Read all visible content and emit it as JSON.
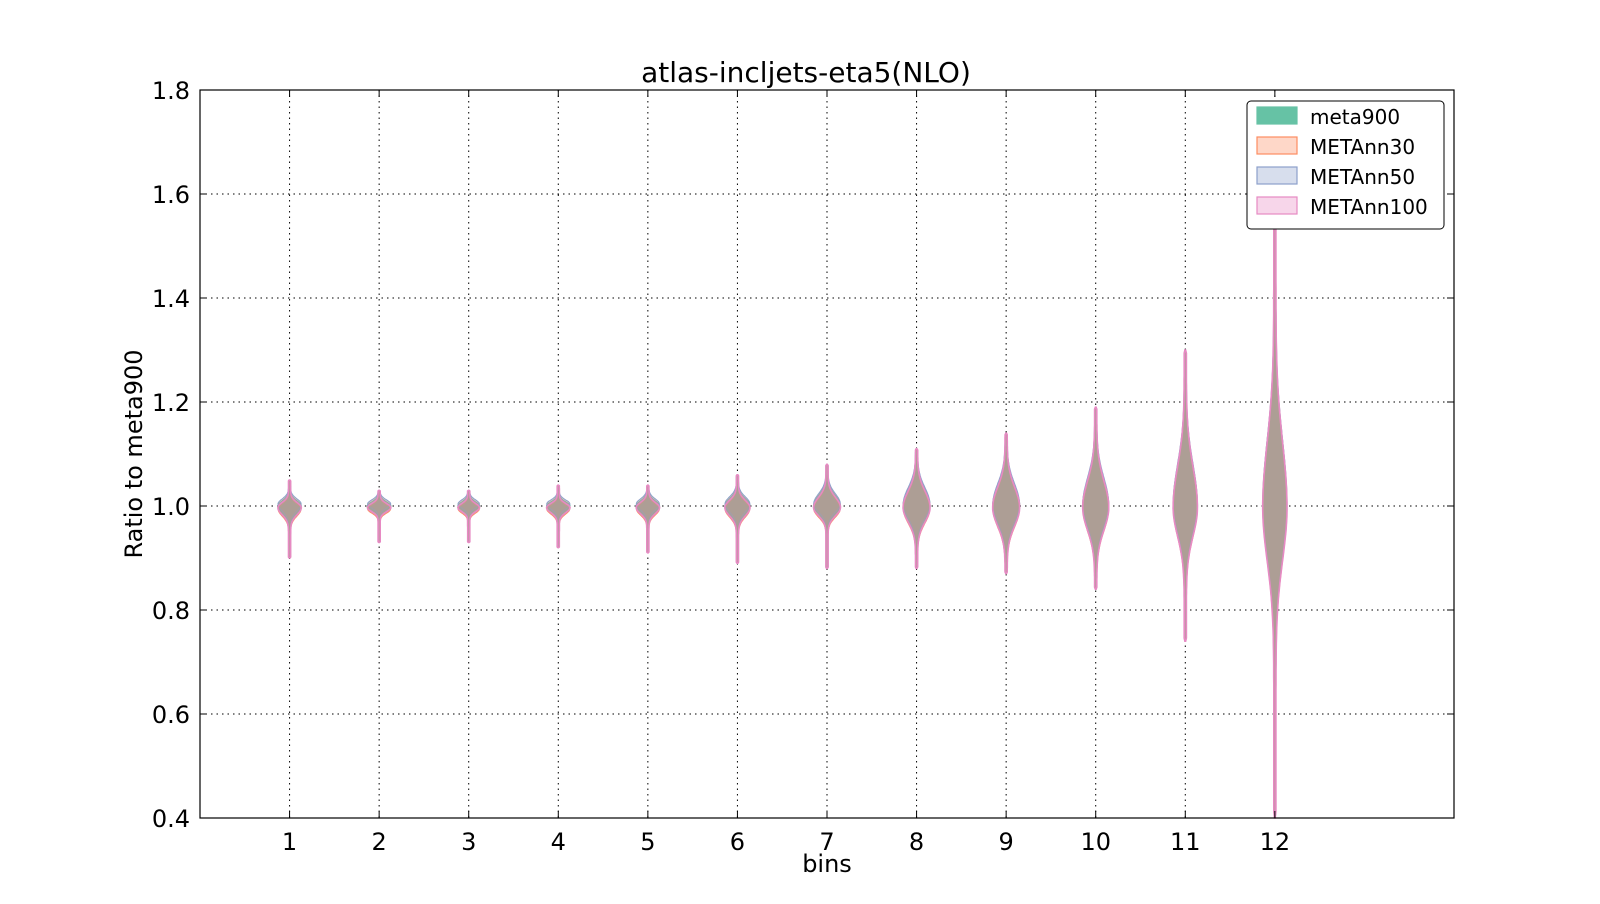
{
  "chart_data": {
    "type": "violin",
    "title": "atlas-incljets-eta5(NLO)",
    "xlabel": "bins",
    "ylabel": "Ratio to meta900",
    "categories": [
      "1",
      "2",
      "3",
      "4",
      "5",
      "6",
      "7",
      "8",
      "9",
      "10",
      "11",
      "12"
    ],
    "xlim": [
      0,
      14
    ],
    "ylim": [
      0.4,
      1.8
    ],
    "yticks": [
      "0.4",
      "0.6",
      "0.8",
      "1.0",
      "1.2",
      "1.4",
      "1.6",
      "1.8"
    ],
    "grid": true,
    "legend_position": "top-right",
    "series": [
      {
        "name": "meta900",
        "color": "#66c2a5"
      },
      {
        "name": "METAnn30",
        "color": "#fc8d62"
      },
      {
        "name": "METAnn50",
        "color": "#8da0cb"
      },
      {
        "name": "METAnn100",
        "color": "#e78ac3"
      }
    ],
    "violins": [
      {
        "bin": 1,
        "y_min": 0.9,
        "y_max": 1.05,
        "upper_lobe_top": 1.025,
        "lower_lobe_bottom": 0.965,
        "max_width": 0.24
      },
      {
        "bin": 2,
        "y_min": 0.93,
        "y_max": 1.03,
        "upper_lobe_top": 1.02,
        "lower_lobe_bottom": 0.98,
        "max_width": 0.24
      },
      {
        "bin": 3,
        "y_min": 0.93,
        "y_max": 1.03,
        "upper_lobe_top": 1.02,
        "lower_lobe_bottom": 0.98,
        "max_width": 0.22
      },
      {
        "bin": 4,
        "y_min": 0.92,
        "y_max": 1.04,
        "upper_lobe_top": 1.02,
        "lower_lobe_bottom": 0.975,
        "max_width": 0.24
      },
      {
        "bin": 5,
        "y_min": 0.91,
        "y_max": 1.04,
        "upper_lobe_top": 1.025,
        "lower_lobe_bottom": 0.97,
        "max_width": 0.24
      },
      {
        "bin": 6,
        "y_min": 0.89,
        "y_max": 1.06,
        "upper_lobe_top": 1.035,
        "lower_lobe_bottom": 0.96,
        "max_width": 0.26
      },
      {
        "bin": 7,
        "y_min": 0.88,
        "y_max": 1.08,
        "upper_lobe_top": 1.05,
        "lower_lobe_bottom": 0.96,
        "max_width": 0.28
      },
      {
        "bin": 8,
        "y_min": 0.88,
        "y_max": 1.11,
        "upper_lobe_top": 1.08,
        "lower_lobe_bottom": 0.93,
        "max_width": 0.28
      },
      {
        "bin": 9,
        "y_min": 0.87,
        "y_max": 1.14,
        "upper_lobe_top": 1.1,
        "lower_lobe_bottom": 0.91,
        "max_width": 0.28
      },
      {
        "bin": 10,
        "y_min": 0.84,
        "y_max": 1.19,
        "upper_lobe_top": 1.13,
        "lower_lobe_bottom": 0.89,
        "max_width": 0.27
      },
      {
        "bin": 11,
        "y_min": 0.74,
        "y_max": 1.3,
        "upper_lobe_top": 1.2,
        "lower_lobe_bottom": 0.86,
        "max_width": 0.25
      },
      {
        "bin": 12,
        "y_min": 0.4,
        "y_max": 1.56,
        "upper_lobe_top": 1.32,
        "lower_lobe_bottom": 0.74,
        "max_width": 0.25
      }
    ]
  }
}
